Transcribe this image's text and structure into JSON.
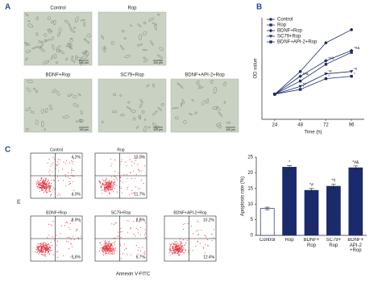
{
  "panel_labels": [
    "A",
    "B",
    "C"
  ],
  "micrographs": [
    {
      "label": "Control",
      "scale": "100 μm"
    },
    {
      "label": "Rop",
      "scale": "100 μm"
    },
    {
      "label": "BDNF+Rop",
      "scale": "100 μm"
    },
    {
      "label": "SC79+Rop",
      "scale": "100 μm"
    },
    {
      "label": "BDNF+API-2+Rop",
      "scale": "100 μm"
    }
  ],
  "flow_cytometry": {
    "y_label": "PI",
    "x_label": "Annexin V-FITC",
    "plots": [
      {
        "title": "Control",
        "upper_right": "4.2%",
        "lower_right": "4.0%"
      },
      {
        "title": "Rop",
        "upper_right": "10.0%",
        "lower_right": "11.7%"
      },
      {
        "title": "BDNF+Rop",
        "upper_right": "8.9%",
        "lower_right": "5.6%"
      },
      {
        "title": "SC79+Rop",
        "upper_right": "8.8%",
        "lower_right": "6.7%"
      },
      {
        "title": "BDNF+API-2+Rop",
        "upper_right": "10.2%",
        "lower_right": "11.4%"
      }
    ]
  },
  "chart_data": [
    {
      "type": "line",
      "xlabel": "Time (h)",
      "ylabel": "OD value",
      "x": [
        24,
        48,
        72,
        96
      ],
      "xlim": [
        12,
        108
      ],
      "xticks": [
        24,
        48,
        72,
        96
      ],
      "ylim": [
        0,
        1.7
      ],
      "legend": "top-left",
      "series": [
        {
          "name": "Control",
          "color": "#1b2a6b",
          "marker": "circle",
          "values": [
            0.42,
            0.8,
            1.28,
            1.5
          ]
        },
        {
          "name": "Rop",
          "color": "#1b2a6b",
          "marker": "square",
          "values": [
            0.42,
            0.5,
            0.68,
            0.72
          ],
          "point_labels": [
            null,
            "*",
            "*",
            "*"
          ]
        },
        {
          "name": "BDNF+Rop",
          "color": "#1b2a6b",
          "marker": "diamond",
          "values": [
            0.42,
            0.72,
            0.98,
            1.15
          ],
          "point_labels": [
            null,
            "*#&",
            "*#&",
            "*#&"
          ]
        },
        {
          "name": "SC79+Rop",
          "color": "#1b2a6b",
          "marker": "triangle",
          "values": [
            0.42,
            0.55,
            0.76,
            0.8
          ],
          "point_labels": [
            null,
            "*#",
            "*#",
            "*#"
          ]
        },
        {
          "name": "BDNF+API-2+Rop",
          "color": "#1b2a6b",
          "marker": "square",
          "values": [
            0.42,
            0.64,
            0.92,
            1.12
          ]
        }
      ]
    },
    {
      "type": "bar",
      "ylabel": "Apoptosis rate (%)",
      "categories": [
        "Control",
        "Rop",
        "BDNF+ Rop",
        "SC79+ Rop",
        "BDNF+ API-2 +Rop"
      ],
      "values": [
        8.6,
        21.8,
        14.4,
        15.7,
        21.6
      ],
      "errors": [
        0.4,
        0.5,
        0.6,
        0.7,
        0.6
      ],
      "colors": [
        "#ffffff",
        "#1b2a6b",
        "#1b2a6b",
        "#1b2a6b",
        "#1b2a6b"
      ],
      "bar_labels": [
        null,
        "*",
        "*#",
        "*#",
        "*#&"
      ],
      "ylim": [
        0,
        25
      ],
      "yticks": [
        0,
        5,
        10,
        15,
        20,
        25
      ]
    }
  ]
}
